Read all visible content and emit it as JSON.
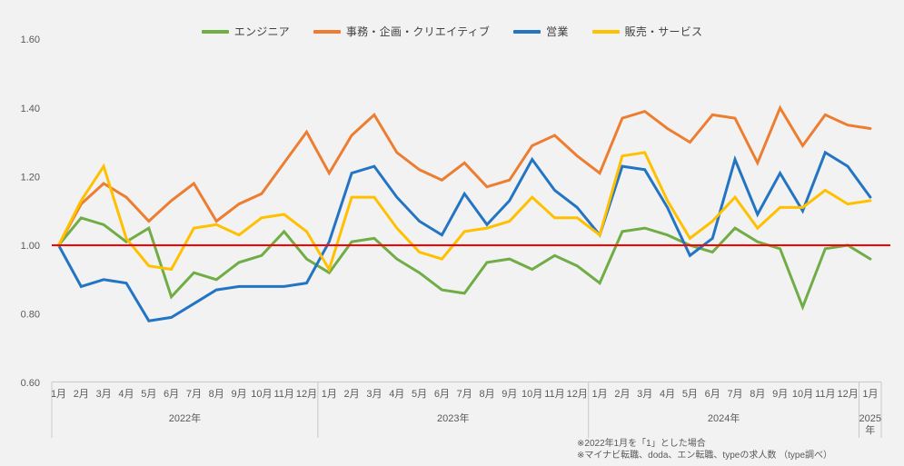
{
  "page": {
    "background": "#f2f2f2"
  },
  "chart_data": {
    "type": "line",
    "title": "",
    "legend_position": "top-center",
    "grid": false,
    "colors": {
      "reference_line": "#ff0000",
      "axis_line": "#c9c9c9",
      "tick_text": "#595959"
    },
    "y_axis": {
      "min": 0.6,
      "max": 1.6,
      "ticks": [
        "1.60",
        "1.40",
        "1.20",
        "1.00",
        "0.80",
        "0.60"
      ],
      "tick_values": [
        1.6,
        1.4,
        1.2,
        1.0,
        0.8,
        0.6
      ]
    },
    "reference_line": {
      "value": 1.0,
      "color": "#ff0000"
    },
    "x_axis": {
      "months": [
        "1月",
        "2月",
        "3月",
        "4月",
        "5月",
        "6月",
        "7月",
        "8月",
        "9月",
        "10月",
        "11月",
        "12月",
        "1月",
        "2月",
        "3月",
        "4月",
        "5月",
        "6月",
        "7月",
        "8月",
        "9月",
        "10月",
        "11月",
        "12月",
        "1月",
        "2月",
        "3月",
        "4月",
        "5月",
        "6月",
        "7月",
        "8月",
        "9月",
        "10月",
        "11月",
        "12月",
        "1月"
      ],
      "year_groups": [
        {
          "label": "2022年",
          "count": 12,
          "lines": [
            "2022年"
          ]
        },
        {
          "label": "2023年",
          "count": 12,
          "lines": [
            "2023年"
          ]
        },
        {
          "label": "2024年",
          "count": 12,
          "lines": [
            "2024年"
          ]
        },
        {
          "label": "2025年",
          "count": 1,
          "lines": [
            "2025",
            "年"
          ]
        }
      ]
    },
    "series": [
      {
        "name": "エンジニア",
        "color": "#70ad47",
        "values": [
          1.0,
          1.08,
          1.06,
          1.01,
          1.05,
          0.85,
          0.92,
          0.9,
          0.95,
          0.97,
          1.04,
          0.96,
          0.92,
          1.01,
          1.02,
          0.96,
          0.92,
          0.87,
          0.86,
          0.95,
          0.96,
          0.93,
          0.97,
          0.94,
          0.89,
          1.04,
          1.05,
          1.03,
          1.0,
          0.98,
          1.05,
          1.01,
          0.99,
          0.82,
          0.99,
          1.0,
          0.96
        ]
      },
      {
        "name": "事務・企画・クリエイティブ",
        "color": "#ed7d31",
        "values": [
          1.0,
          1.12,
          1.18,
          1.14,
          1.07,
          1.13,
          1.18,
          1.07,
          1.12,
          1.15,
          1.24,
          1.33,
          1.21,
          1.32,
          1.38,
          1.27,
          1.22,
          1.19,
          1.24,
          1.17,
          1.19,
          1.29,
          1.32,
          1.26,
          1.21,
          1.37,
          1.39,
          1.34,
          1.3,
          1.38,
          1.37,
          1.24,
          1.4,
          1.29,
          1.38,
          1.35,
          1.34
        ]
      },
      {
        "name": "営業",
        "color": "#2375c4",
        "values": [
          1.0,
          0.88,
          0.9,
          0.89,
          0.78,
          0.79,
          0.83,
          0.87,
          0.88,
          0.88,
          0.88,
          0.89,
          1.01,
          1.21,
          1.23,
          1.14,
          1.07,
          1.03,
          1.15,
          1.06,
          1.13,
          1.25,
          1.16,
          1.11,
          1.03,
          1.23,
          1.22,
          1.11,
          0.97,
          1.02,
          1.25,
          1.09,
          1.21,
          1.1,
          1.27,
          1.23,
          1.14
        ]
      },
      {
        "name": "販売・サービス",
        "color": "#ffc000",
        "values": [
          1.0,
          1.13,
          1.23,
          1.02,
          0.94,
          0.93,
          1.05,
          1.06,
          1.03,
          1.08,
          1.09,
          1.04,
          0.93,
          1.14,
          1.14,
          1.05,
          0.98,
          0.96,
          1.04,
          1.05,
          1.07,
          1.14,
          1.08,
          1.08,
          1.03,
          1.26,
          1.27,
          1.13,
          1.02,
          1.07,
          1.14,
          1.05,
          1.11,
          1.11,
          1.16,
          1.12,
          1.13
        ]
      }
    ],
    "footnotes": [
      "※2022年1月を「1」とした場合",
      "※マイナビ転職、doda、エン転職、typeの求人数 （type調べ）"
    ]
  }
}
